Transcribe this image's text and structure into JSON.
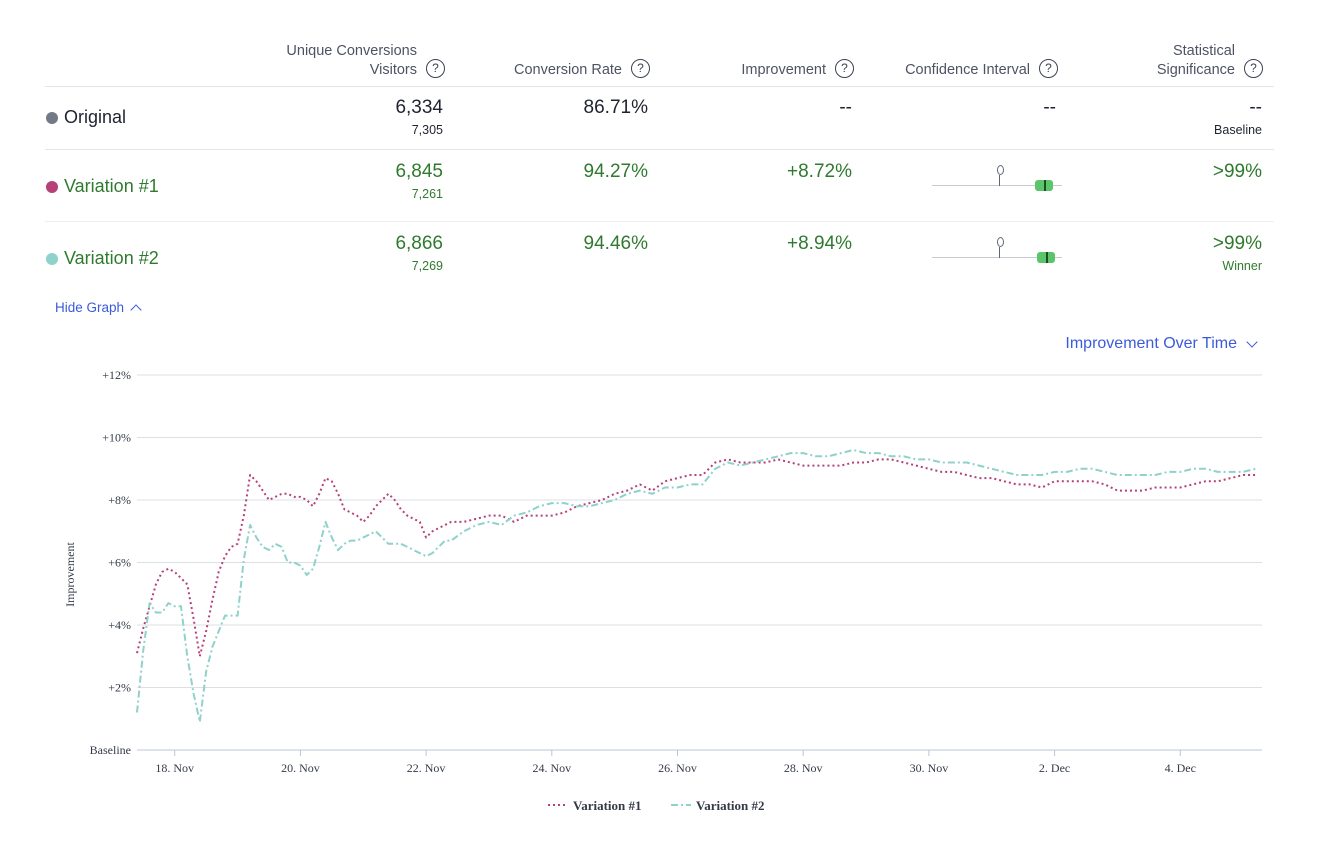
{
  "table": {
    "headers": {
      "conversions_line1": "Unique Conversions",
      "conversions_line2": "Visitors",
      "conversion_rate": "Conversion Rate",
      "improvement": "Improvement",
      "confidence_interval": "Confidence Interval",
      "significance_line1": "Statistical",
      "significance_line2": "Significance"
    },
    "rows": [
      {
        "name": "Original",
        "color": "#747a85",
        "conversions": "6,334",
        "visitors": "7,305",
        "rate": "86.71%",
        "improvement": "--",
        "ci": "--",
        "significance": "--",
        "note": "Baseline"
      },
      {
        "name": "Variation #1",
        "color": "#b5407a",
        "conversions": "6,845",
        "visitors": "7,261",
        "rate": "94.27%",
        "improvement": "+8.72%",
        "significance": ">99%",
        "note": ""
      },
      {
        "name": "Variation #2",
        "color": "#8fd1cb",
        "conversions": "6,866",
        "visitors": "7,269",
        "rate": "94.46%",
        "improvement": "+8.94%",
        "significance": ">99%",
        "note": "Winner"
      }
    ]
  },
  "controls": {
    "hide_graph": "Hide Graph",
    "metric_selector": "Improvement Over Time"
  },
  "colors": {
    "accent": "#3b5bdb",
    "positive": "#2f7a2f",
    "variation1": "#b5407a",
    "variation2": "#8fd1cb",
    "ci_bar": "#5cc46a"
  },
  "chart_data": {
    "type": "line",
    "ylabel": "Improvement",
    "xlabel": "",
    "ylim": [
      0,
      12
    ],
    "y_ticks": [
      {
        "value": 0,
        "label": "Baseline"
      },
      {
        "value": 2,
        "label": "+2%"
      },
      {
        "value": 4,
        "label": "+4%"
      },
      {
        "value": 6,
        "label": "+6%"
      },
      {
        "value": 8,
        "label": "+8%"
      },
      {
        "value": 10,
        "label": "+10%"
      },
      {
        "value": 12,
        "label": "+12%"
      }
    ],
    "xlim": [
      17.4,
      35.3
    ],
    "x_ticks": [
      {
        "value": 18,
        "label": "18. Nov"
      },
      {
        "value": 20,
        "label": "20. Nov"
      },
      {
        "value": 22,
        "label": "22. Nov"
      },
      {
        "value": 24,
        "label": "24. Nov"
      },
      {
        "value": 26,
        "label": "26. Nov"
      },
      {
        "value": 28,
        "label": "28. Nov"
      },
      {
        "value": 30,
        "label": "30. Nov"
      },
      {
        "value": 32,
        "label": "2. Dec"
      },
      {
        "value": 34,
        "label": "4. Dec"
      }
    ],
    "grid": true,
    "legend_position": "bottom-center",
    "series": [
      {
        "name": "Variation #1",
        "color": "#b5407a",
        "dash": "dotted",
        "x": [
          17.4,
          17.5,
          17.6,
          17.7,
          17.8,
          17.9,
          18.0,
          18.1,
          18.2,
          18.3,
          18.4,
          18.5,
          18.6,
          18.7,
          18.8,
          18.9,
          19.0,
          19.1,
          19.2,
          19.3,
          19.4,
          19.5,
          19.6,
          19.7,
          19.8,
          19.9,
          20.0,
          20.1,
          20.2,
          20.3,
          20.4,
          20.5,
          20.6,
          20.7,
          20.8,
          20.9,
          21.0,
          21.1,
          21.2,
          21.3,
          21.4,
          21.5,
          21.6,
          21.7,
          21.8,
          21.9,
          22.0,
          22.1,
          22.2,
          22.3,
          22.4,
          22.6,
          22.8,
          23.0,
          23.2,
          23.4,
          23.6,
          23.8,
          24.0,
          24.2,
          24.4,
          24.6,
          24.8,
          25.0,
          25.2,
          25.4,
          25.6,
          25.8,
          26.0,
          26.2,
          26.4,
          26.6,
          26.8,
          27.0,
          27.2,
          27.4,
          27.6,
          27.8,
          28.0,
          28.2,
          28.4,
          28.6,
          28.8,
          29.0,
          29.2,
          29.4,
          29.6,
          29.8,
          30.0,
          30.2,
          30.4,
          30.6,
          30.8,
          31.0,
          31.2,
          31.4,
          31.6,
          31.8,
          32.0,
          32.2,
          32.4,
          32.6,
          32.8,
          33.0,
          33.2,
          33.4,
          33.6,
          33.8,
          34.0,
          34.2,
          34.4,
          34.6,
          34.8,
          35.0,
          35.2
        ],
        "values": [
          3.1,
          3.9,
          4.6,
          5.3,
          5.7,
          5.8,
          5.7,
          5.5,
          5.3,
          4.2,
          3.0,
          3.8,
          4.8,
          5.7,
          6.2,
          6.5,
          6.6,
          7.5,
          8.8,
          8.6,
          8.3,
          8.0,
          8.1,
          8.2,
          8.2,
          8.1,
          8.1,
          8.0,
          7.8,
          8.2,
          8.7,
          8.6,
          8.2,
          7.7,
          7.6,
          7.5,
          7.3,
          7.5,
          7.8,
          8.0,
          8.2,
          8.0,
          7.7,
          7.5,
          7.4,
          7.3,
          6.8,
          7.0,
          7.1,
          7.2,
          7.3,
          7.3,
          7.4,
          7.5,
          7.5,
          7.3,
          7.5,
          7.5,
          7.5,
          7.6,
          7.8,
          7.9,
          8.0,
          8.2,
          8.3,
          8.5,
          8.3,
          8.6,
          8.7,
          8.8,
          8.8,
          9.2,
          9.3,
          9.2,
          9.2,
          9.2,
          9.3,
          9.2,
          9.1,
          9.1,
          9.1,
          9.1,
          9.2,
          9.2,
          9.3,
          9.3,
          9.2,
          9.1,
          9.0,
          8.9,
          8.9,
          8.8,
          8.7,
          8.7,
          8.6,
          8.5,
          8.5,
          8.4,
          8.6,
          8.6,
          8.6,
          8.6,
          8.5,
          8.3,
          8.3,
          8.3,
          8.4,
          8.4,
          8.4,
          8.5,
          8.6,
          8.6,
          8.7,
          8.8,
          8.8
        ]
      },
      {
        "name": "Variation #2",
        "color": "#8fd1cb",
        "dash": "dash-dot",
        "x": [
          17.4,
          17.5,
          17.6,
          17.7,
          17.8,
          17.9,
          18.0,
          18.1,
          18.2,
          18.3,
          18.4,
          18.5,
          18.6,
          18.7,
          18.8,
          18.9,
          19.0,
          19.1,
          19.2,
          19.3,
          19.4,
          19.5,
          19.6,
          19.7,
          19.8,
          19.9,
          20.0,
          20.1,
          20.2,
          20.3,
          20.4,
          20.5,
          20.6,
          20.7,
          20.8,
          20.9,
          21.0,
          21.1,
          21.2,
          21.3,
          21.4,
          21.5,
          21.6,
          21.7,
          21.8,
          21.9,
          22.0,
          22.1,
          22.2,
          22.3,
          22.4,
          22.6,
          22.8,
          23.0,
          23.2,
          23.4,
          23.6,
          23.8,
          24.0,
          24.2,
          24.4,
          24.6,
          24.8,
          25.0,
          25.2,
          25.4,
          25.6,
          25.8,
          26.0,
          26.2,
          26.4,
          26.6,
          26.8,
          27.0,
          27.2,
          27.4,
          27.6,
          27.8,
          28.0,
          28.2,
          28.4,
          28.6,
          28.8,
          29.0,
          29.2,
          29.4,
          29.6,
          29.8,
          30.0,
          30.2,
          30.4,
          30.6,
          30.8,
          31.0,
          31.2,
          31.4,
          31.6,
          31.8,
          32.0,
          32.2,
          32.4,
          32.6,
          32.8,
          33.0,
          33.2,
          33.4,
          33.6,
          33.8,
          34.0,
          34.2,
          34.4,
          34.6,
          34.8,
          35.0,
          35.2
        ],
        "values": [
          1.2,
          3.2,
          4.7,
          4.4,
          4.4,
          4.7,
          4.6,
          4.6,
          3.0,
          1.8,
          0.9,
          2.5,
          3.3,
          3.8,
          4.3,
          4.3,
          4.3,
          6.1,
          7.2,
          6.8,
          6.5,
          6.4,
          6.6,
          6.5,
          6.0,
          6.0,
          5.9,
          5.6,
          5.8,
          6.5,
          7.3,
          6.8,
          6.4,
          6.6,
          6.7,
          6.7,
          6.8,
          6.9,
          7.0,
          6.8,
          6.6,
          6.6,
          6.6,
          6.5,
          6.4,
          6.3,
          6.2,
          6.3,
          6.5,
          6.7,
          6.7,
          7.0,
          7.2,
          7.3,
          7.2,
          7.5,
          7.6,
          7.8,
          7.9,
          7.9,
          7.8,
          7.8,
          7.9,
          8.0,
          8.2,
          8.3,
          8.2,
          8.4,
          8.4,
          8.5,
          8.5,
          9.0,
          9.2,
          9.1,
          9.2,
          9.3,
          9.4,
          9.5,
          9.5,
          9.4,
          9.4,
          9.5,
          9.6,
          9.5,
          9.5,
          9.4,
          9.4,
          9.3,
          9.3,
          9.2,
          9.2,
          9.2,
          9.1,
          9.0,
          8.9,
          8.8,
          8.8,
          8.8,
          8.9,
          8.9,
          9.0,
          9.0,
          8.9,
          8.8,
          8.8,
          8.8,
          8.8,
          8.9,
          8.9,
          9.0,
          9.0,
          8.9,
          8.9,
          8.9,
          9.0
        ]
      }
    ]
  },
  "confidence_intervals": [
    null,
    {
      "lower": 0.79,
      "upper": 0.93,
      "marker": 0.86
    },
    {
      "lower": 0.81,
      "upper": 0.95,
      "marker": 0.88
    }
  ]
}
